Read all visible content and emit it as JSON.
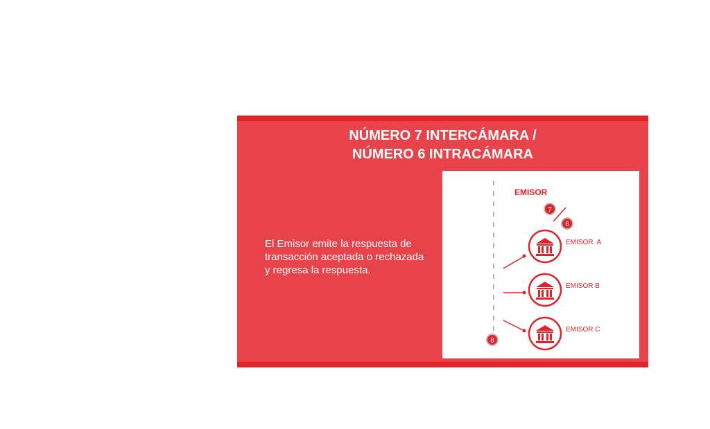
{
  "title_line1": "NÚMERO 7 INTERCÁMARA /",
  "title_line2": "NÚMERO 6 INTRACÁMARA",
  "description": "El Emisor emite la respuesta de transacción aceptada o rechazada y regresa la respuesta.",
  "diagram": {
    "header": "EMISOR",
    "step_top": "7",
    "step_mid": "6",
    "step_bottom": "8",
    "banks": [
      "EMISOR  A",
      "EMISOR B",
      "EMISOR C"
    ],
    "icon": "bank-building-icon"
  },
  "colors": {
    "card": "#e8434a",
    "band": "#e02329",
    "accent": "#e02329",
    "text_light": "#ffffff"
  }
}
